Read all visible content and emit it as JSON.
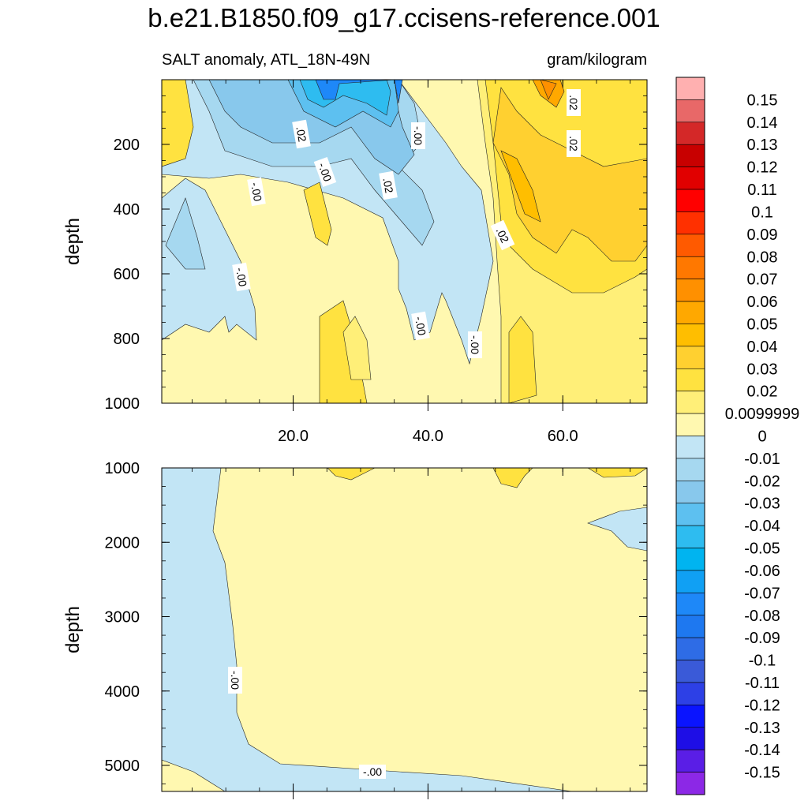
{
  "chart_data": {
    "type": "heatmap",
    "title": "b.e21.B1850.f09_g17.ccisens-reference.001",
    "subtitle_left": "SALT anomaly, ATL_18N-49N",
    "subtitle_right": "gram/kilogram",
    "xlabel": "",
    "x_tick_labels": [
      "20.0",
      "40.0",
      "60.0"
    ],
    "x_ticks": [
      20,
      40,
      60
    ],
    "xlim": [
      0.5,
      72.5
    ],
    "panels": [
      {
        "ylabel": "depth",
        "ylim": [
          0,
          1000
        ],
        "y_ticks": [
          200,
          400,
          600,
          800,
          1000
        ],
        "y_tick_labels": [
          "200",
          "400",
          "600",
          "800",
          "1000"
        ],
        "contour_labels": [
          "-.00",
          ".02",
          "-.00",
          ".02",
          "-.00",
          ".02",
          ".02",
          ".02",
          "-.00",
          "-.00",
          "-.00"
        ]
      },
      {
        "ylabel": "depth",
        "ylim": [
          1000,
          5350
        ],
        "y_ticks": [
          1000,
          2000,
          3000,
          4000,
          5000
        ],
        "y_tick_labels": [
          "1000",
          "2000",
          "3000",
          "4000",
          "5000"
        ],
        "contour_labels": [
          "-.00",
          "-.00"
        ]
      }
    ],
    "colorbar": {
      "levels": [
        "0.15",
        "0.14",
        "0.13",
        "0.12",
        "0.11",
        "0.1",
        "0.09",
        "0.08",
        "0.07",
        "0.06",
        "0.05",
        "0.04",
        "0.03",
        "0.02",
        "0.0099999",
        "0",
        "-0.01",
        "-0.02",
        "-0.03",
        "-0.04",
        "-0.05",
        "-0.06",
        "-0.07",
        "-0.08",
        "-0.09",
        "-0.1",
        "-0.11",
        "-0.12",
        "-0.13",
        "-0.14",
        "-0.15"
      ],
      "colors": [
        "#ffb0b0",
        "#e86868",
        "#d42828",
        "#c80000",
        "#e10000",
        "#ff0000",
        "#ff3000",
        "#ff5a00",
        "#ff7800",
        "#ff9000",
        "#ffa800",
        "#ffbe00",
        "#ffd030",
        "#ffe240",
        "#ffef78",
        "#fff8b0",
        "#c2e5f5",
        "#a6d8f0",
        "#88c8ec",
        "#5dc0f0",
        "#2ebcf0",
        "#00b4f0",
        "#10a0f4",
        "#1e88f8",
        "#1e78f0",
        "#2e6ce6",
        "#3a5ad8",
        "#2d40e6",
        "#0a14ff",
        "#1e0ee6",
        "#5a1ee6",
        "#8c28e6"
      ]
    }
  }
}
